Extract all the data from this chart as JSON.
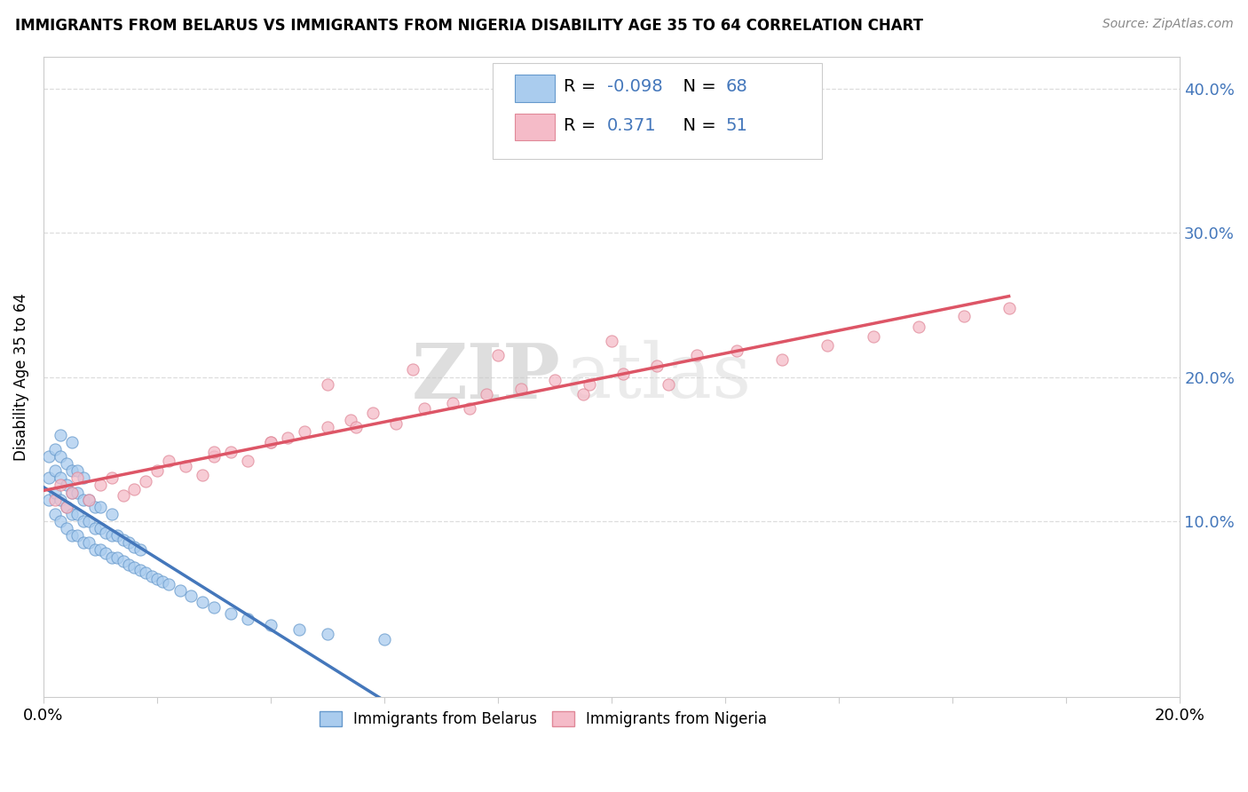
{
  "title": "IMMIGRANTS FROM BELARUS VS IMMIGRANTS FROM NIGERIA DISABILITY AGE 35 TO 64 CORRELATION CHART",
  "source": "Source: ZipAtlas.com",
  "ylabel": "Disability Age 35 to 64",
  "legend_R_belarus": "-0.098",
  "legend_N_belarus": "68",
  "legend_R_nigeria": "0.371",
  "legend_N_nigeria": "51",
  "legend_label_belarus": "Immigrants from Belarus",
  "legend_label_nigeria": "Immigrants from Nigeria",
  "xlim": [
    0.0,
    0.2
  ],
  "ylim": [
    -0.022,
    0.422
  ],
  "yticks": [
    0.1,
    0.2,
    0.3,
    0.4
  ],
  "ytick_labels": [
    "10.0%",
    "20.0%",
    "30.0%",
    "40.0%"
  ],
  "xticks": [
    0.0,
    0.02,
    0.04,
    0.06,
    0.08,
    0.1,
    0.12,
    0.14,
    0.16,
    0.18,
    0.2
  ],
  "color_belarus_fill": "#aaccee",
  "color_belarus_edge": "#6699cc",
  "color_nigeria_fill": "#f5bbc8",
  "color_nigeria_edge": "#e08898",
  "color_belarus_line": "#4477bb",
  "color_nigeria_line": "#dd5566",
  "color_dashed": "#bbbbbb",
  "color_legend_blue": "#4477bb",
  "watermark_zip": "ZIP",
  "watermark_atlas": "atlas",
  "belarus_x": [
    0.001,
    0.001,
    0.001,
    0.002,
    0.002,
    0.002,
    0.002,
    0.003,
    0.003,
    0.003,
    0.003,
    0.003,
    0.004,
    0.004,
    0.004,
    0.004,
    0.005,
    0.005,
    0.005,
    0.005,
    0.005,
    0.006,
    0.006,
    0.006,
    0.006,
    0.007,
    0.007,
    0.007,
    0.007,
    0.008,
    0.008,
    0.008,
    0.009,
    0.009,
    0.009,
    0.01,
    0.01,
    0.01,
    0.011,
    0.011,
    0.012,
    0.012,
    0.012,
    0.013,
    0.013,
    0.014,
    0.014,
    0.015,
    0.015,
    0.016,
    0.016,
    0.017,
    0.017,
    0.018,
    0.019,
    0.02,
    0.021,
    0.022,
    0.024,
    0.026,
    0.028,
    0.03,
    0.033,
    0.036,
    0.04,
    0.045,
    0.05,
    0.06
  ],
  "belarus_y": [
    0.115,
    0.13,
    0.145,
    0.105,
    0.12,
    0.135,
    0.15,
    0.1,
    0.115,
    0.13,
    0.145,
    0.16,
    0.095,
    0.11,
    0.125,
    0.14,
    0.09,
    0.105,
    0.12,
    0.135,
    0.155,
    0.09,
    0.105,
    0.12,
    0.135,
    0.085,
    0.1,
    0.115,
    0.13,
    0.085,
    0.1,
    0.115,
    0.08,
    0.095,
    0.11,
    0.08,
    0.095,
    0.11,
    0.078,
    0.092,
    0.075,
    0.09,
    0.105,
    0.075,
    0.09,
    0.072,
    0.087,
    0.07,
    0.085,
    0.068,
    0.082,
    0.066,
    0.08,
    0.064,
    0.062,
    0.06,
    0.058,
    0.056,
    0.052,
    0.048,
    0.044,
    0.04,
    0.036,
    0.032,
    0.028,
    0.025,
    0.022,
    0.018
  ],
  "nigeria_x": [
    0.002,
    0.003,
    0.004,
    0.005,
    0.006,
    0.008,
    0.01,
    0.012,
    0.014,
    0.016,
    0.018,
    0.02,
    0.022,
    0.025,
    0.028,
    0.03,
    0.033,
    0.036,
    0.04,
    0.043,
    0.046,
    0.05,
    0.054,
    0.058,
    0.062,
    0.067,
    0.072,
    0.078,
    0.084,
    0.09,
    0.096,
    0.102,
    0.108,
    0.115,
    0.122,
    0.13,
    0.138,
    0.146,
    0.154,
    0.162,
    0.17,
    0.05,
    0.065,
    0.08,
    0.1,
    0.03,
    0.04,
    0.055,
    0.075,
    0.095,
    0.11
  ],
  "nigeria_y": [
    0.115,
    0.125,
    0.11,
    0.12,
    0.13,
    0.115,
    0.125,
    0.13,
    0.118,
    0.122,
    0.128,
    0.135,
    0.142,
    0.138,
    0.132,
    0.145,
    0.148,
    0.142,
    0.155,
    0.158,
    0.162,
    0.165,
    0.17,
    0.175,
    0.168,
    0.178,
    0.182,
    0.188,
    0.192,
    0.198,
    0.195,
    0.202,
    0.208,
    0.215,
    0.218,
    0.212,
    0.222,
    0.228,
    0.235,
    0.242,
    0.248,
    0.195,
    0.205,
    0.215,
    0.225,
    0.148,
    0.155,
    0.165,
    0.178,
    0.188,
    0.195
  ]
}
